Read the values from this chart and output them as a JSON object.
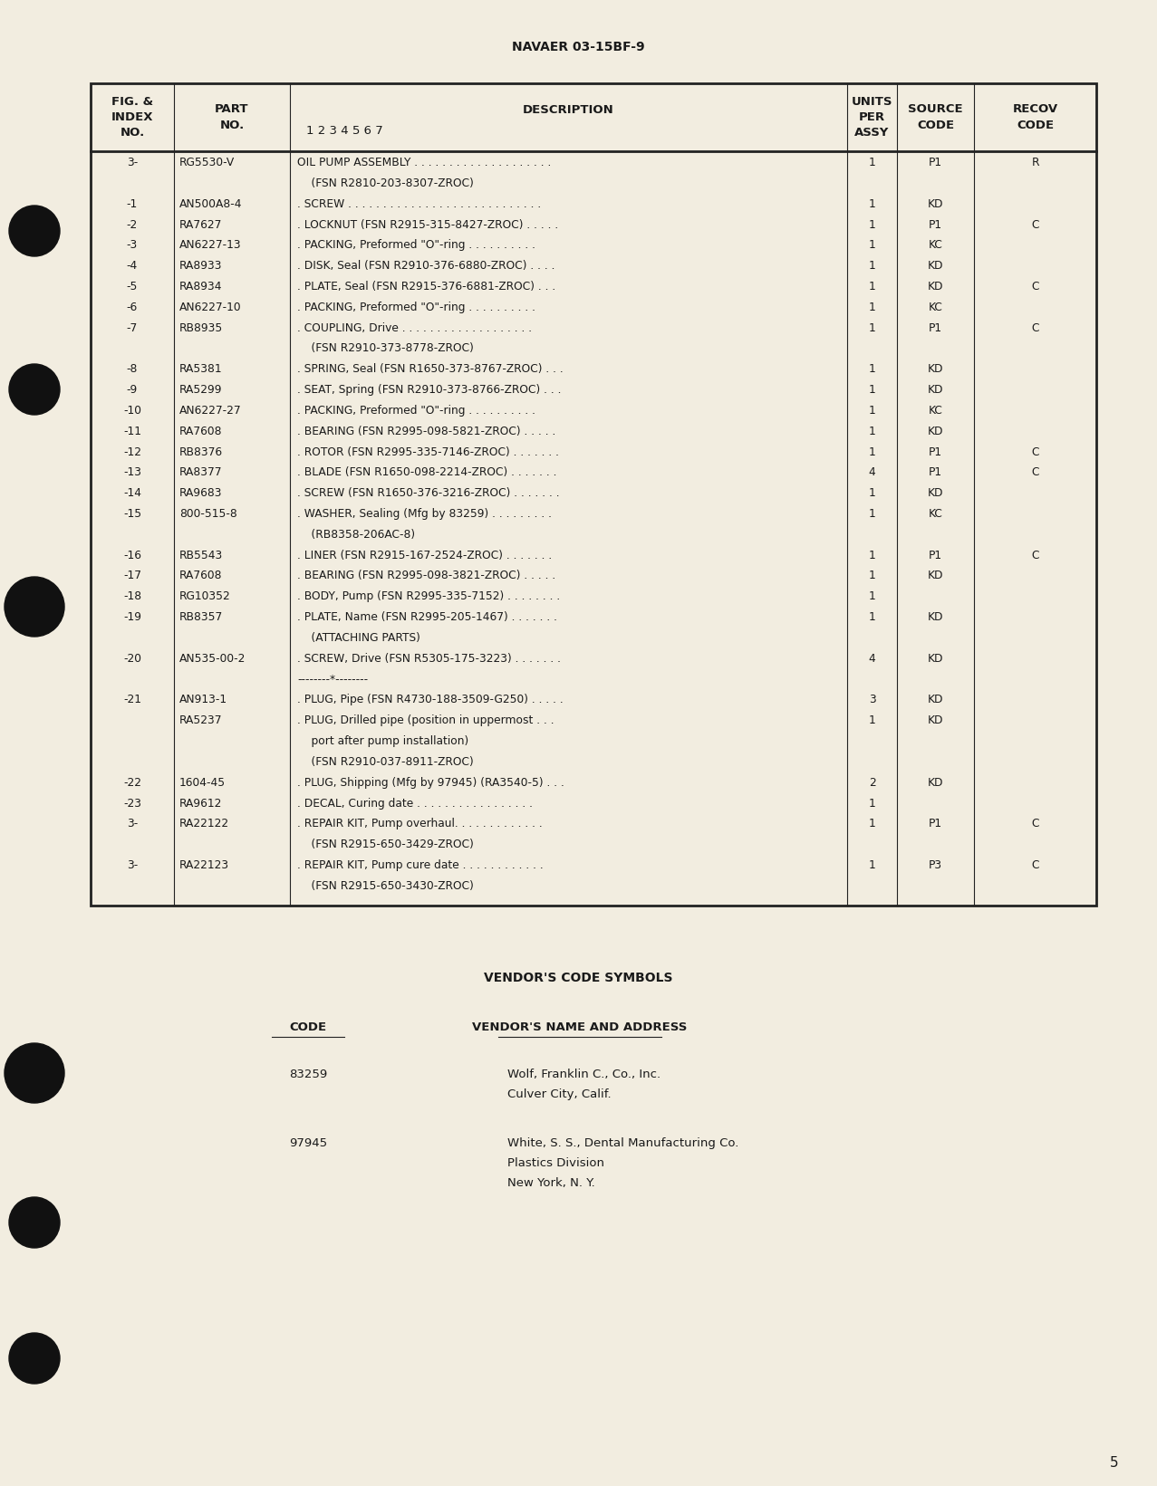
{
  "page_header": "NAVAER 03-15BF-9",
  "page_number": "5",
  "bg": "#f2ede0",
  "rows": [
    {
      "fig": "3-",
      "part": "RG5530-V",
      "desc": "OIL PUMP ASSEMBLY . . . . . . . . . . . . . . . . . . . .",
      "desc2": "    (FSN R2810-203-8307-ZROC)",
      "units": "1",
      "source": "P1",
      "recov": "R"
    },
    {
      "fig": "-1",
      "part": "AN500A8-4",
      "desc": ". SCREW . . . . . . . . . . . . . . . . . . . . . . . . . . . .",
      "desc2": "",
      "units": "1",
      "source": "KD",
      "recov": ""
    },
    {
      "fig": "-2",
      "part": "RA7627",
      "desc": ". LOCKNUT (FSN R2915-315-8427-ZROC) . . . . .",
      "desc2": "",
      "units": "1",
      "source": "P1",
      "recov": "C"
    },
    {
      "fig": "-3",
      "part": "AN6227-13",
      "desc": ". PACKING, Preformed \"O\"-ring . . . . . . . . . .",
      "desc2": "",
      "units": "1",
      "source": "KC",
      "recov": ""
    },
    {
      "fig": "-4",
      "part": "RA8933",
      "desc": ". DISK, Seal (FSN R2910-376-6880-ZROC) . . . .",
      "desc2": "",
      "units": "1",
      "source": "KD",
      "recov": ""
    },
    {
      "fig": "-5",
      "part": "RA8934",
      "desc": ". PLATE, Seal (FSN R2915-376-6881-ZROC) . . .",
      "desc2": "",
      "units": "1",
      "source": "KD",
      "recov": "C"
    },
    {
      "fig": "-6",
      "part": "AN6227-10",
      "desc": ". PACKING, Preformed \"O\"-ring . . . . . . . . . .",
      "desc2": "",
      "units": "1",
      "source": "KC",
      "recov": ""
    },
    {
      "fig": "-7",
      "part": "RB8935",
      "desc": ". COUPLING, Drive . . . . . . . . . . . . . . . . . . .",
      "desc2": "    (FSN R2910-373-8778-ZROC)",
      "units": "1",
      "source": "P1",
      "recov": "C"
    },
    {
      "fig": "-8",
      "part": "RA5381",
      "desc": ". SPRING, Seal (FSN R1650-373-8767-ZROC) . . .",
      "desc2": "",
      "units": "1",
      "source": "KD",
      "recov": ""
    },
    {
      "fig": "-9",
      "part": "RA5299",
      "desc": ". SEAT, Spring (FSN R2910-373-8766-ZROC) . . .",
      "desc2": "",
      "units": "1",
      "source": "KD",
      "recov": ""
    },
    {
      "fig": "-10",
      "part": "AN6227-27",
      "desc": ". PACKING, Preformed \"O\"-ring . . . . . . . . . .",
      "desc2": "",
      "units": "1",
      "source": "KC",
      "recov": ""
    },
    {
      "fig": "-11",
      "part": "RA7608",
      "desc": ". BEARING (FSN R2995-098-5821-ZROC) . . . . .",
      "desc2": "",
      "units": "1",
      "source": "KD",
      "recov": ""
    },
    {
      "fig": "-12",
      "part": "RB8376",
      "desc": ". ROTOR (FSN R2995-335-7146-ZROC) . . . . . . .",
      "desc2": "",
      "units": "1",
      "source": "P1",
      "recov": "C"
    },
    {
      "fig": "-13",
      "part": "RA8377",
      "desc": ". BLADE (FSN R1650-098-2214-ZROC) . . . . . . .",
      "desc2": "",
      "units": "4",
      "source": "P1",
      "recov": "C"
    },
    {
      "fig": "-14",
      "part": "RA9683",
      "desc": ". SCREW (FSN R1650-376-3216-ZROC) . . . . . . .",
      "desc2": "",
      "units": "1",
      "source": "KD",
      "recov": ""
    },
    {
      "fig": "-15",
      "part": "800-515-8",
      "desc": ". WASHER, Sealing (Mfg by 83259) . . . . . . . . .",
      "desc2": "    (RB8358-206AC-8)",
      "units": "1",
      "source": "KC",
      "recov": ""
    },
    {
      "fig": "-16",
      "part": "RB5543",
      "desc": ". LINER (FSN R2915-167-2524-ZROC) . . . . . . .",
      "desc2": "",
      "units": "1",
      "source": "P1",
      "recov": "C"
    },
    {
      "fig": "-17",
      "part": "RA7608",
      "desc": ". BEARING (FSN R2995-098-3821-ZROC) . . . . .",
      "desc2": "",
      "units": "1",
      "source": "KD",
      "recov": ""
    },
    {
      "fig": "-18",
      "part": "RG10352",
      "desc": ". BODY, Pump (FSN R2995-335-7152) . . . . . . . .",
      "desc2": "",
      "units": "1",
      "source": "",
      "recov": ""
    },
    {
      "fig": "-19",
      "part": "RB8357",
      "desc": ". PLATE, Name (FSN R2995-205-1467) . . . . . . .",
      "desc2": "    (ATTACHING PARTS)",
      "units": "1",
      "source": "KD",
      "recov": ""
    },
    {
      "fig": "-20",
      "part": "AN535-00-2",
      "desc": ". SCREW, Drive (FSN R5305-175-3223) . . . . . . .",
      "desc2": "--------*--------",
      "units": "4",
      "source": "KD",
      "recov": ""
    },
    {
      "fig": "-21",
      "part": "AN913-1",
      "desc": ". PLUG, Pipe (FSN R4730-188-3509-G250) . . . . .",
      "desc2": "",
      "units": "3",
      "source": "KD",
      "recov": ""
    },
    {
      "fig": "",
      "part": "RA5237",
      "desc": ". PLUG, Drilled pipe (position in uppermost . . .",
      "desc2": "    port after pump installation)\n    (FSN R2910-037-8911-ZROC)",
      "units": "1",
      "source": "KD",
      "recov": ""
    },
    {
      "fig": "-22",
      "part": "1604-45",
      "desc": ". PLUG, Shipping (Mfg by 97945) (RA3540-5) . . .",
      "desc2": "",
      "units": "2",
      "source": "KD",
      "recov": ""
    },
    {
      "fig": "-23",
      "part": "RA9612",
      "desc": ". DECAL, Curing date . . . . . . . . . . . . . . . . .",
      "desc2": "",
      "units": "1",
      "source": "",
      "recov": ""
    },
    {
      "fig": "3-",
      "part": "RA22122",
      "desc": ". REPAIR KIT, Pump overhaul. . . . . . . . . . . . .",
      "desc2": "    (FSN R2915-650-3429-ZROC)",
      "units": "1",
      "source": "P1",
      "recov": "C"
    },
    {
      "fig": "3-",
      "part": "RA22123",
      "desc": ". REPAIR KIT, Pump cure date . . . . . . . . . . . .",
      "desc2": "    (FSN R2915-650-3430-ZROC)",
      "units": "1",
      "source": "P3",
      "recov": "C"
    }
  ],
  "vendors": [
    {
      "code": "83259",
      "lines": [
        "Wolf, Franklin C., Co., Inc.",
        "Culver City, Calif."
      ]
    },
    {
      "code": "97945",
      "lines": [
        "White, S. S., Dental Manufacturing Co.",
        "Plastics Division",
        "New York, N. Y."
      ]
    }
  ]
}
